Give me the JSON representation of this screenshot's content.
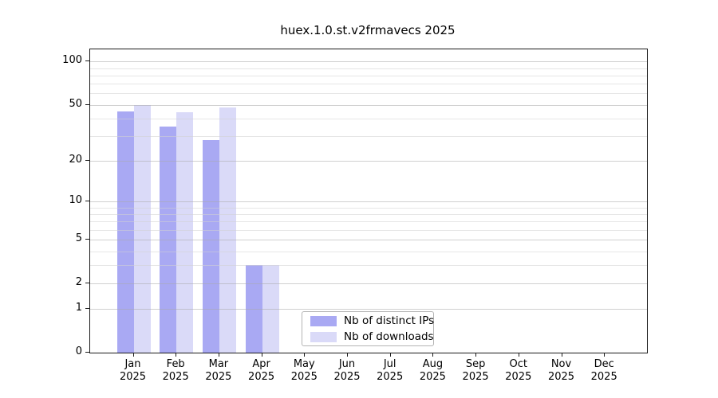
{
  "title": "huex.1.0.st.v2frmavecs 2025",
  "legend": {
    "items": [
      {
        "label": "Nb of distinct IPs",
        "color": "#a9a9f3"
      },
      {
        "label": "Nb of downloads",
        "color": "#dadaf8"
      }
    ]
  },
  "chart_data": {
    "type": "bar",
    "title": "huex.1.0.st.v2frmavecs 2025",
    "categories": [
      "Jan 2025",
      "Feb 2025",
      "Mar 2025",
      "Apr 2025",
      "May 2025",
      "Jun 2025",
      "Jul 2025",
      "Aug 2025",
      "Sep 2025",
      "Oct 2025",
      "Nov 2025",
      "Dec 2025"
    ],
    "x_months": [
      "Jan",
      "Feb",
      "Mar",
      "Apr",
      "May",
      "Jun",
      "Jul",
      "Aug",
      "Sep",
      "Oct",
      "Nov",
      "Dec"
    ],
    "x_year": "2025",
    "series": [
      {
        "name": "Nb of distinct IPs",
        "color": "#a9a9f3",
        "values": [
          45,
          35,
          28,
          3,
          0,
          0,
          0,
          0,
          0,
          0,
          0,
          0
        ]
      },
      {
        "name": "Nb of downloads",
        "color": "#dadaf8",
        "values": [
          50,
          44,
          48,
          3,
          0,
          0,
          0,
          0,
          0,
          0,
          0,
          0
        ]
      }
    ],
    "xlabel": "",
    "ylabel": "",
    "yscale": "log-like (log10 of value+1), zero included at baseline",
    "ylim": [
      0,
      122
    ],
    "y_major_ticks": [
      0,
      1,
      2,
      5,
      10,
      20,
      50,
      100
    ],
    "y_major_tick_labels": [
      "0",
      "1",
      "2",
      "5",
      "10",
      "20",
      "50",
      "100"
    ],
    "y_minor_gridlines": [
      3,
      4,
      6,
      7,
      8,
      9,
      30,
      40,
      60,
      70,
      80,
      90
    ],
    "grid": "horizontal gridlines, major and minor, drawn over bars",
    "legend_position": "inside bottom-center of plot"
  }
}
